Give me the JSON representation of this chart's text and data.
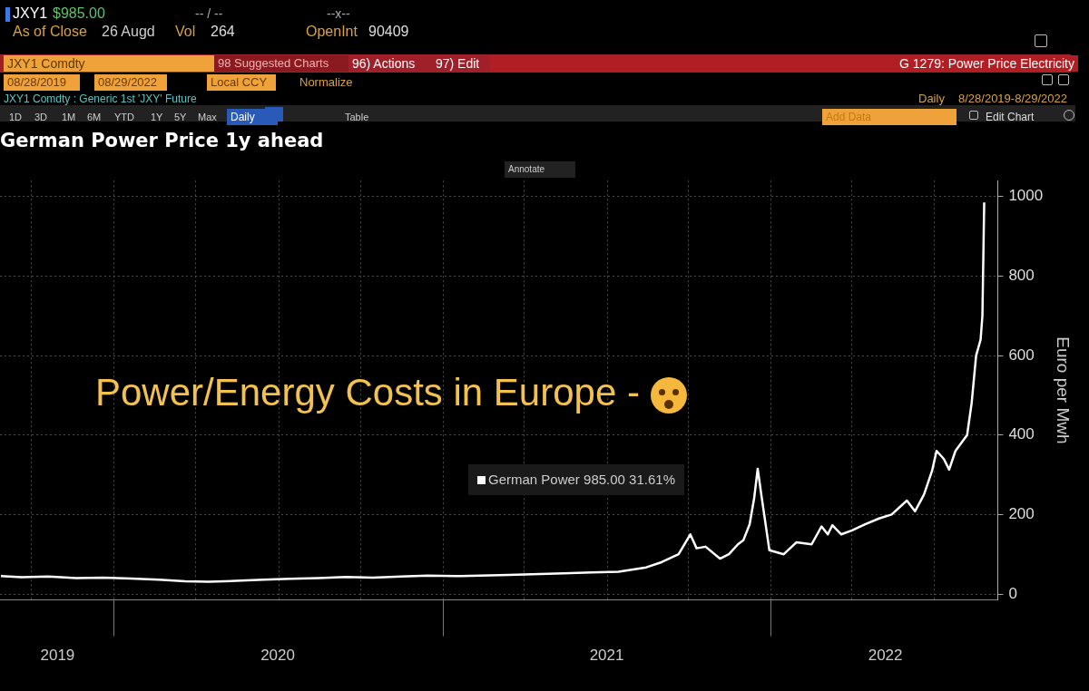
{
  "chart_data": {
    "type": "line",
    "title": "German Power Price 1y ahead",
    "ylabel": "Euro per Mwh",
    "annotations": [
      "JXY1",
      "$985.00",
      "-- / --",
      "--x--",
      "As of Close",
      "26 Augd",
      "Vol",
      "264",
      "OpenInt",
      "90409",
      "JXY1 Comdty",
      "98 Suggested Charts",
      "96) Actions",
      "97) Edit",
      "G 1279: Power Price Electricity",
      "08/28/2019",
      "08/29/2022",
      "Local CCY",
      "Normalize",
      "JXY1 Comdty : Generic 1st 'JXY' Future",
      "Daily",
      "8/28/2019-8/29/2022",
      "1D",
      "3D",
      "1M",
      "6M",
      "YTD",
      "1Y",
      "5Y",
      "Max",
      "Daily",
      "Table",
      "Add Data",
      "Edit Chart",
      "Annotate",
      "Power/Energy Costs in Europe -",
      "985.00  31.61%"
    ],
    "xlim": [
      "2019-08-27",
      "2022-09-10"
    ],
    "xticks": [
      {
        "value": "2019-10-01",
        "label": null
      },
      {
        "value": "2019-10-30",
        "label": "2019"
      },
      {
        "value": "2020-01-01",
        "label": null
      },
      {
        "value": "2020-04-01",
        "label": null
      },
      {
        "value": "2020-07-01",
        "label": "2020"
      },
      {
        "value": "2020-07-02",
        "label": null
      },
      {
        "value": "2020-10-01",
        "label": null
      },
      {
        "value": "2021-01-01",
        "label": null
      },
      {
        "value": "2021-04-01",
        "label": null
      },
      {
        "value": "2021-07-02",
        "label": "2021"
      },
      {
        "value": "2021-07-03",
        "label": null
      },
      {
        "value": "2021-10-01",
        "label": null
      },
      {
        "value": "2022-01-01",
        "label": null
      },
      {
        "value": "2022-04-01",
        "label": null
      },
      {
        "value": "2022-05-08",
        "label": "2022"
      },
      {
        "value": "2022-07-01",
        "label": null
      }
    ],
    "ylim": [
      -15,
      1040
    ],
    "yticks": [
      0,
      200,
      400,
      600,
      800,
      1000
    ],
    "grid": true,
    "legend": "center",
    "marker": "none",
    "line_style": "solid",
    "series": [
      {
        "name": "German Power",
        "color": "#ffffff",
        "x": [
          "2019-08-28",
          "2019-09-20",
          "2019-10-20",
          "2019-11-20",
          "2019-12-20",
          "2020-01-20",
          "2020-02-20",
          "2020-03-20",
          "2020-04-15",
          "2020-05-15",
          "2020-06-15",
          "2020-07-15",
          "2020-08-15",
          "2020-09-15",
          "2020-10-15",
          "2020-11-15",
          "2020-12-15",
          "2021-01-15",
          "2021-03-15",
          "2021-05-15",
          "2021-06-15",
          "2021-07-15",
          "2021-08-15",
          "2021-09-01",
          "2021-09-20",
          "2021-10-03",
          "2021-10-10",
          "2021-10-20",
          "2021-11-05",
          "2021-11-15",
          "2021-11-25",
          "2021-12-01",
          "2021-12-08",
          "2021-12-13",
          "2021-12-17",
          "2021-12-21",
          "2021-12-30",
          "2022-01-15",
          "2022-01-29",
          "2022-02-15",
          "2022-02-26",
          "2022-03-05",
          "2022-03-10",
          "2022-03-20",
          "2022-04-01",
          "2022-04-15",
          "2022-05-01",
          "2022-05-15",
          "2022-06-01",
          "2022-06-10",
          "2022-06-20",
          "2022-06-29",
          "2022-07-04",
          "2022-07-12",
          "2022-07-18",
          "2022-07-25",
          "2022-08-07",
          "2022-08-12",
          "2022-08-17",
          "2022-08-22",
          "2022-08-24",
          "2022-08-26"
        ],
        "values": [
          45,
          42,
          44,
          40,
          41,
          39,
          36,
          32,
          31,
          33,
          36,
          38,
          40,
          43,
          41,
          44,
          46,
          45,
          48,
          52,
          54,
          56,
          67,
          80,
          100,
          150,
          115,
          119,
          89,
          100,
          125,
          135,
          175,
          240,
          315,
          250,
          110,
          100,
          130,
          125,
          170,
          150,
          173,
          150,
          160,
          175,
          190,
          200,
          235,
          208,
          250,
          310,
          360,
          340,
          313,
          360,
          400,
          480,
          600,
          640,
          700,
          985
        ]
      }
    ]
  }
}
